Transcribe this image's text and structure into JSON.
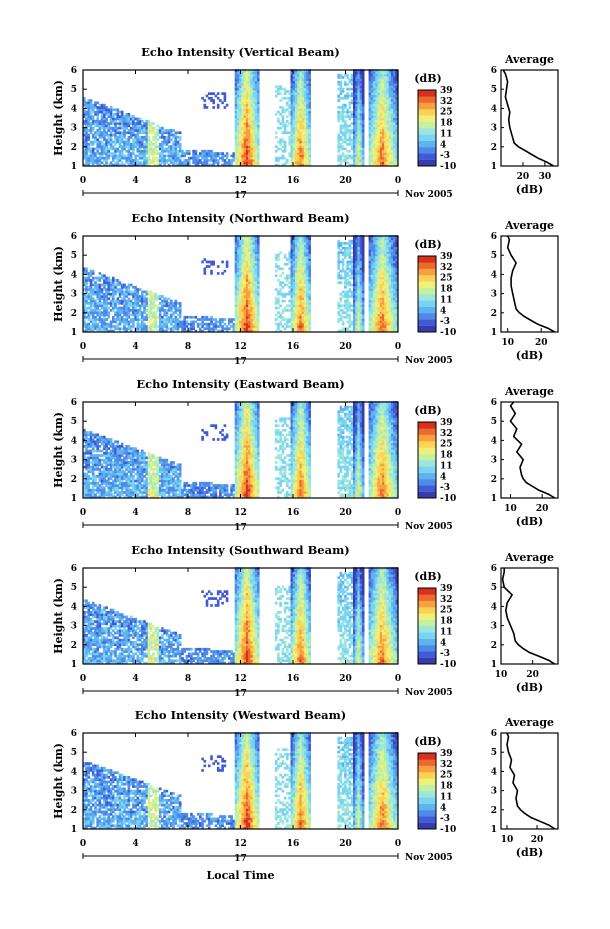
{
  "figure": {
    "date_label": "Nov 2005",
    "day_label": "17",
    "xlabel": "Local Time",
    "ylabel": "Height (km)",
    "colorbar_label": "(dB)",
    "avg_title": "Average",
    "avg_xlabel": "(dB)"
  },
  "colors": {
    "colormap": [
      "#3a3aa8",
      "#3f5bd6",
      "#4f8ae8",
      "#5fb4f0",
      "#78d4f2",
      "#9be6dd",
      "#c4f0a0",
      "#eef07a",
      "#fcd255",
      "#f8a040",
      "#ee6a2c",
      "#d8301e"
    ]
  },
  "chart_data": [
    {
      "type": "heatmap",
      "title": "Echo Intensity (Vertical Beam)",
      "ylabel": "Height (km)",
      "x_ticks": [
        "0",
        "4",
        "8",
        "12",
        "16",
        "20",
        "0"
      ],
      "xlim": [
        0,
        24
      ],
      "ylim": [
        1,
        6
      ],
      "y_ticks": [
        "1",
        "2",
        "3",
        "4",
        "5",
        "6"
      ],
      "colorbar": {
        "label": "(dB)",
        "ticks": [
          "39",
          "32",
          "25",
          "18",
          "11",
          "4",
          "-3",
          "-10"
        ],
        "range": [
          -10,
          39
        ]
      },
      "average": {
        "title": "Average",
        "xlabel": "(dB)",
        "x_ticks": [
          "20",
          "30"
        ],
        "xlim": [
          10,
          36
        ],
        "profile_x": [
          34,
          31,
          27,
          24,
          21,
          18,
          16,
          15,
          14,
          13.5,
          14,
          13,
          12,
          12.5,
          13,
          12,
          11
        ],
        "profile_y": [
          1.0,
          1.2,
          1.4,
          1.6,
          1.8,
          2.0,
          2.2,
          2.6,
          3.0,
          3.4,
          3.8,
          4.2,
          4.6,
          5.0,
          5.4,
          5.8,
          6.0
        ]
      }
    },
    {
      "type": "heatmap",
      "title": "Echo Intensity (Northward Beam)",
      "ylabel": "Height (km)",
      "x_ticks": [
        "0",
        "4",
        "8",
        "12",
        "16",
        "20",
        "0"
      ],
      "xlim": [
        0,
        24
      ],
      "ylim": [
        1,
        6
      ],
      "y_ticks": [
        "1",
        "2",
        "3",
        "4",
        "5",
        "6"
      ],
      "colorbar": {
        "label": "(dB)",
        "ticks": [
          "39",
          "32",
          "25",
          "18",
          "11",
          "4",
          "-3",
          "-10"
        ],
        "range": [
          -10,
          39
        ]
      },
      "average": {
        "title": "Average",
        "xlabel": "(dB)",
        "x_ticks": [
          "10",
          "20"
        ],
        "xlim": [
          8,
          25
        ],
        "profile_x": [
          24,
          22,
          19,
          17,
          15,
          13.5,
          12.5,
          12,
          11.5,
          11,
          11,
          11.5,
          12.5,
          11,
          10,
          10.5,
          10
        ],
        "profile_y": [
          1.0,
          1.2,
          1.4,
          1.6,
          1.8,
          2.0,
          2.2,
          2.6,
          3.0,
          3.4,
          3.8,
          4.2,
          4.6,
          5.0,
          5.4,
          5.8,
          6.0
        ]
      }
    },
    {
      "type": "heatmap",
      "title": "Echo Intensity (Eastward Beam)",
      "ylabel": "Height (km)",
      "x_ticks": [
        "0",
        "4",
        "8",
        "12",
        "16",
        "20",
        "0"
      ],
      "xlim": [
        0,
        24
      ],
      "ylim": [
        1,
        6
      ],
      "y_ticks": [
        "1",
        "2",
        "3",
        "4",
        "5",
        "6"
      ],
      "colorbar": {
        "label": "(dB)",
        "ticks": [
          "39",
          "32",
          "25",
          "18",
          "11",
          "4",
          "-3",
          "-10"
        ],
        "range": [
          -10,
          39
        ]
      },
      "average": {
        "title": "Average",
        "xlabel": "(dB)",
        "x_ticks": [
          "10",
          "20"
        ],
        "xlim": [
          7,
          25
        ],
        "profile_x": [
          24,
          22,
          19,
          17,
          15,
          14,
          13.5,
          13,
          14,
          12,
          13.5,
          11,
          12,
          10,
          11.5,
          10,
          11
        ],
        "profile_y": [
          1.0,
          1.2,
          1.4,
          1.6,
          1.8,
          2.0,
          2.2,
          2.6,
          3.0,
          3.4,
          3.8,
          4.2,
          4.6,
          5.0,
          5.4,
          5.8,
          6.0
        ]
      }
    },
    {
      "type": "heatmap",
      "title": "Echo Intensity (Southward Beam)",
      "ylabel": "Height (km)",
      "x_ticks": [
        "0",
        "4",
        "8",
        "12",
        "16",
        "20",
        "0"
      ],
      "xlim": [
        0,
        24
      ],
      "ylim": [
        1,
        6
      ],
      "y_ticks": [
        "1",
        "2",
        "3",
        "4",
        "5",
        "6"
      ],
      "colorbar": {
        "label": "(dB)",
        "ticks": [
          "39",
          "32",
          "25",
          "18",
          "11",
          "4",
          "-3",
          "-10"
        ],
        "range": [
          -10,
          39
        ]
      },
      "average": {
        "title": "Average",
        "xlabel": "(dB)",
        "x_ticks": [
          "10",
          "20"
        ],
        "xlim": [
          10,
          28
        ],
        "profile_x": [
          27,
          25,
          22,
          19,
          17,
          15.5,
          14.5,
          14,
          13,
          12,
          11.5,
          12,
          13.5,
          11,
          10.5,
          11,
          11
        ],
        "profile_y": [
          1.0,
          1.2,
          1.4,
          1.6,
          1.8,
          2.0,
          2.2,
          2.6,
          3.0,
          3.4,
          3.8,
          4.2,
          4.6,
          5.0,
          5.4,
          5.8,
          6.0
        ]
      }
    },
    {
      "type": "heatmap",
      "title": "Echo Intensity (Westward Beam)",
      "ylabel": "Height (km)",
      "x_ticks": [
        "0",
        "4",
        "8",
        "12",
        "16",
        "20",
        "0"
      ],
      "xlim": [
        0,
        24
      ],
      "ylim": [
        1,
        6
      ],
      "y_ticks": [
        "1",
        "2",
        "3",
        "4",
        "5",
        "6"
      ],
      "colorbar": {
        "label": "(dB)",
        "ticks": [
          "39",
          "32",
          "25",
          "18",
          "11",
          "4",
          "-3",
          "-10"
        ],
        "range": [
          -10,
          39
        ]
      },
      "average": {
        "title": "Average",
        "xlabel": "(dB)",
        "x_ticks": [
          "10",
          "20"
        ],
        "xlim": [
          8,
          27
        ],
        "profile_x": [
          26,
          24,
          21,
          18,
          16,
          14.5,
          13.5,
          13,
          13.5,
          12,
          12.5,
          11,
          11.5,
          10.5,
          10,
          10.5,
          10
        ],
        "profile_y": [
          1.0,
          1.2,
          1.4,
          1.6,
          1.8,
          2.0,
          2.2,
          2.6,
          3.0,
          3.4,
          3.8,
          4.2,
          4.6,
          5.0,
          5.4,
          5.8,
          6.0
        ]
      }
    }
  ]
}
